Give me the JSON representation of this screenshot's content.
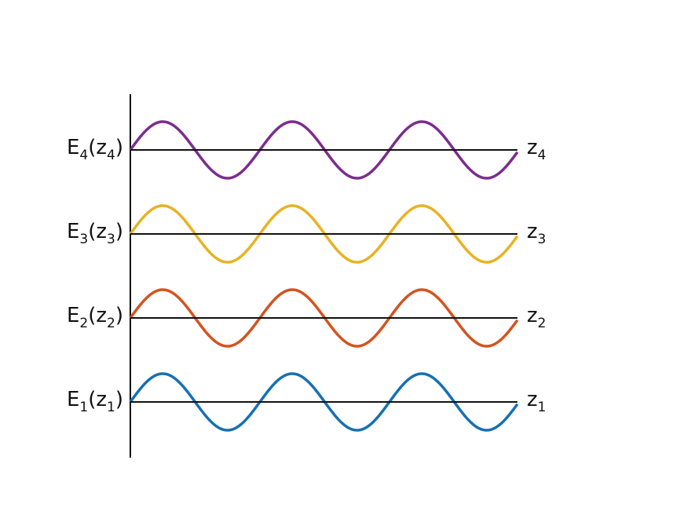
{
  "rows": [
    {
      "name": [
        "E",
        "4",
        "(z",
        "4",
        ")"
      ],
      "axis": [
        "z",
        "4"
      ],
      "color": "#7b2d8e"
    },
    {
      "name": [
        "E",
        "3",
        "(z",
        "3",
        ")"
      ],
      "axis": [
        "z",
        "3"
      ],
      "color": "#e8b222"
    },
    {
      "name": [
        "E",
        "2",
        "(z",
        "2",
        ")"
      ],
      "axis": [
        "z",
        "2"
      ],
      "color": "#d4531f"
    },
    {
      "name": [
        "E",
        "1",
        "(z",
        "1",
        ")"
      ],
      "axis": [
        "z",
        "1"
      ],
      "color": "#1670b4"
    }
  ]
}
